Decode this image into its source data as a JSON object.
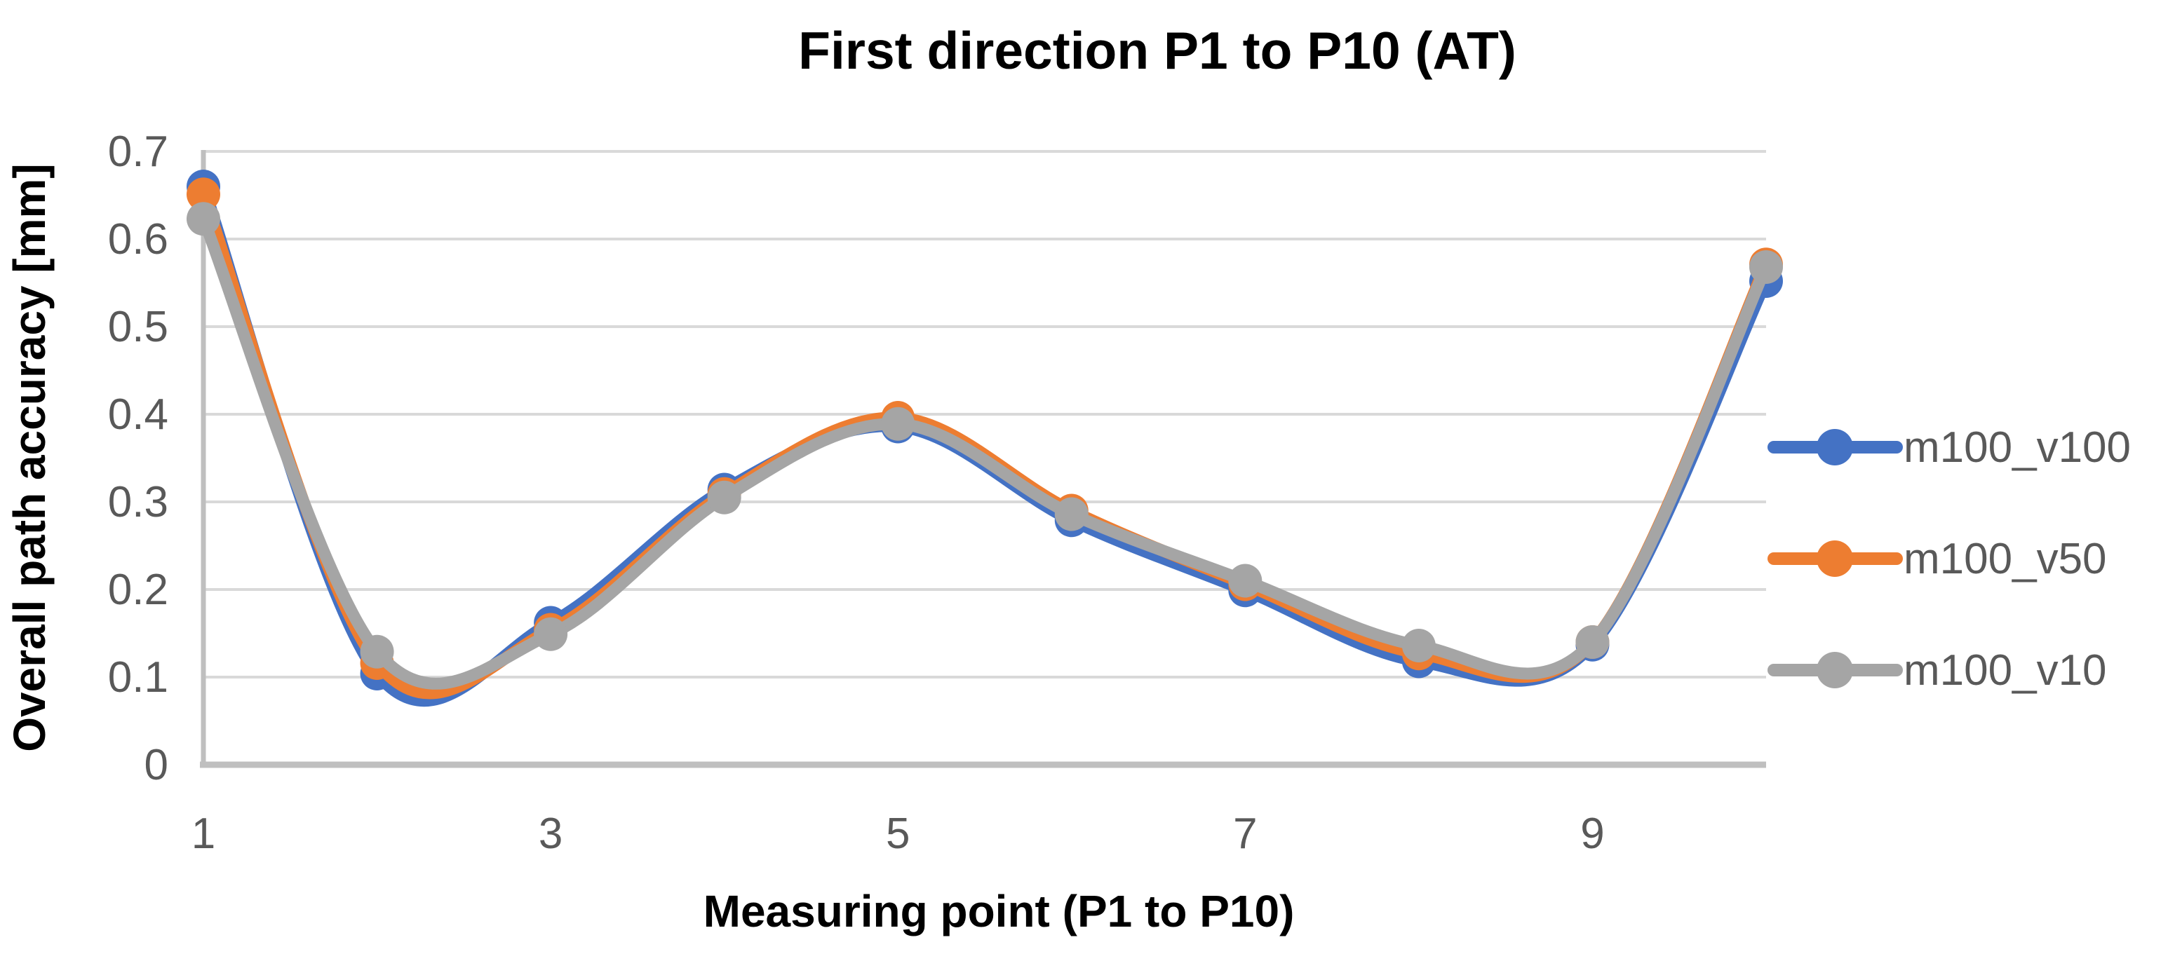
{
  "chart_data": {
    "type": "line",
    "title": "First direction P1 to P10 (AT)",
    "xlabel": "Measuring point (P1 to P10)",
    "ylabel": "Overall path accuracy [mm]",
    "x": [
      1,
      2,
      3,
      4,
      5,
      6,
      7,
      8,
      9,
      10
    ],
    "xlim": [
      1,
      10
    ],
    "ylim": [
      0,
      0.7
    ],
    "y_tick_labels": [
      "0",
      "0.1",
      "0.2",
      "0.3",
      "0.4",
      "0.5",
      "0.6",
      "0.7"
    ],
    "x_tick_labels": [
      "1",
      "3",
      "5",
      "7",
      "9"
    ],
    "x_tick_values": [
      1,
      3,
      5,
      7,
      9
    ],
    "grid": true,
    "smooth": true,
    "legend_position": "right",
    "series": [
      {
        "name": "m100_v100",
        "color": "#4472C4",
        "values": [
          0.66,
          0.104,
          0.162,
          0.314,
          0.386,
          0.279,
          0.199,
          0.118,
          0.137,
          0.552
        ]
      },
      {
        "name": "m100_v50",
        "color": "#ED7D31",
        "values": [
          0.651,
          0.116,
          0.154,
          0.309,
          0.396,
          0.29,
          0.206,
          0.127,
          0.14,
          0.571
        ]
      },
      {
        "name": "m100_v10",
        "color": "#A5A5A5",
        "values": [
          0.623,
          0.129,
          0.149,
          0.305,
          0.389,
          0.286,
          0.21,
          0.136,
          0.14,
          0.568
        ]
      }
    ],
    "colors": {
      "gridline": "#D9D9D9",
      "axis_line": "#BFBFBF",
      "tick_text": "#595959",
      "title_text": "#000000"
    }
  }
}
